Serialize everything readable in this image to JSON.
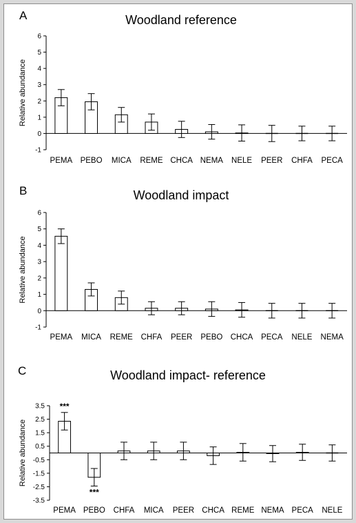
{
  "chart_data": [
    {
      "type": "bar",
      "panel": "A",
      "title": "Woodland reference",
      "ylabel": "Relative abundance",
      "ylim": [
        -1,
        6
      ],
      "yticks": [
        "-1",
        "0",
        "1",
        "2",
        "3",
        "4",
        "5",
        "6"
      ],
      "categories": [
        "PEMA",
        "PEBO",
        "MICA",
        "REME",
        "CHCA",
        "NEMA",
        "NELE",
        "PEER",
        "CHFA",
        "PECA"
      ],
      "values": [
        2.2,
        1.95,
        1.15,
        0.7,
        0.25,
        0.1,
        0.03,
        0.0,
        0.0,
        0.0
      ],
      "error": [
        0.5,
        0.5,
        0.45,
        0.5,
        0.5,
        0.45,
        0.5,
        0.5,
        0.45,
        0.45
      ],
      "significance": [
        "",
        "",
        "",
        "",
        "",
        "",
        "",
        "",
        "",
        ""
      ]
    },
    {
      "type": "bar",
      "panel": "B",
      "title": "Woodland impact",
      "ylabel": "Relative abundance",
      "ylim": [
        -1,
        6
      ],
      "yticks": [
        "-1",
        "0",
        "1",
        "2",
        "3",
        "4",
        "5",
        "6"
      ],
      "categories": [
        "PEMA",
        "MICA",
        "REME",
        "CHFA",
        "PEER",
        "PEBO",
        "CHCA",
        "PECA",
        "NELE",
        "NEMA"
      ],
      "values": [
        4.55,
        1.3,
        0.8,
        0.15,
        0.15,
        0.1,
        0.05,
        0.0,
        0.0,
        0.0
      ],
      "error": [
        0.45,
        0.4,
        0.4,
        0.4,
        0.4,
        0.45,
        0.45,
        0.45,
        0.45,
        0.45
      ],
      "significance": [
        "",
        "",
        "",
        "",
        "",
        "",
        "",
        "",
        "",
        ""
      ]
    },
    {
      "type": "bar",
      "panel": "C",
      "title": "Woodland impact- reference",
      "ylabel": "Relative abundance",
      "ylim": [
        -3.5,
        3.5
      ],
      "yticks": [
        "-3.5",
        "-2.5",
        "-1.5",
        "-0.5",
        "0.5",
        "1.5",
        "2.5",
        "3.5"
      ],
      "categories": [
        "PEMA",
        "PEBO",
        "CHFA",
        "MICA",
        "PEER",
        "CHCA",
        "REME",
        "NEMA",
        "PECA",
        "NELE"
      ],
      "values": [
        2.35,
        -1.8,
        0.15,
        0.15,
        0.15,
        -0.2,
        0.05,
        -0.05,
        0.05,
        0.0
      ],
      "error": [
        0.65,
        0.65,
        0.65,
        0.65,
        0.65,
        0.65,
        0.65,
        0.6,
        0.6,
        0.6
      ],
      "significance": [
        "***",
        "***",
        "",
        "",
        "",
        "",
        "",
        "",
        "",
        ""
      ]
    }
  ]
}
